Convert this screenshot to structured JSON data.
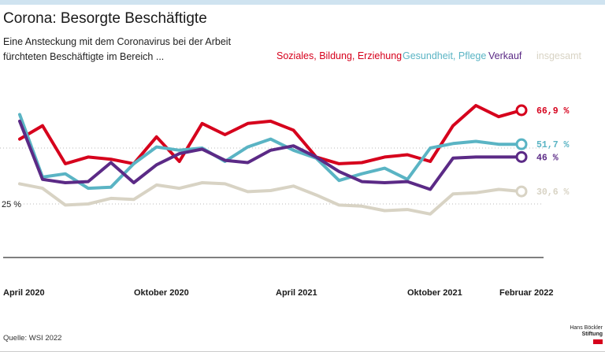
{
  "header": {
    "title": "Corona: Besorgte Beschäftigte",
    "subtitle": "Eine Ansteckung mit dem Coronavirus bei der Arbeit fürchteten Beschäftigte im Bereich ..."
  },
  "footer": {
    "source": "Quelle: WSI 2022",
    "logo_line1": "Hans Böckler",
    "logo_line2": "Stiftung"
  },
  "colors": {
    "soziales": "#d6001c",
    "gesundheit": "#5ab4c4",
    "verkauf": "#5b2a86",
    "insgesamt": "#d8d3c4",
    "axis": "#333333",
    "grid": "#bbbbbb"
  },
  "chart_data": {
    "type": "line",
    "title": "Corona: Besorgte Beschäftigte",
    "ylabel": "",
    "xlabel": "",
    "ylim": [
      10,
      85
    ],
    "grid": "dotted reference lines at 25 % and 50 %",
    "y_ticks": [
      {
        "value": 25,
        "label": "25 %"
      }
    ],
    "x_ticks": [
      {
        "index": 0,
        "label": "April 2020"
      },
      {
        "index": 6,
        "label": "Oktober 2020"
      },
      {
        "index": 12,
        "label": "April 2021"
      },
      {
        "index": 18,
        "label": "Oktober 2021"
      },
      {
        "index": 22,
        "label": "Februar 2022"
      }
    ],
    "n_points": 23,
    "series": [
      {
        "key": "soziales",
        "name": "Soziales, Bildung, Erziehung",
        "end_label": "66,9 %",
        "values": [
          54,
          60,
          43,
          46,
          45,
          43,
          55,
          44,
          61,
          56,
          61,
          62,
          58,
          46,
          43,
          43.5,
          46,
          47,
          44,
          60,
          69,
          64,
          66.9
        ]
      },
      {
        "key": "gesundheit",
        "name": "Gesundheit, Pflege",
        "end_label": "51,7 %",
        "values": [
          65,
          37,
          38.5,
          32,
          32.5,
          43,
          50.5,
          49,
          50,
          44,
          50.5,
          54,
          49,
          45.5,
          35.5,
          38.5,
          41,
          36,
          50,
          52,
          53,
          51.7,
          51.7
        ]
      },
      {
        "key": "verkauf",
        "name": "Verkauf",
        "end_label": "46 %",
        "values": [
          62,
          36,
          34.5,
          35,
          43.5,
          34.5,
          42.5,
          47.5,
          49.5,
          44.5,
          43.5,
          49,
          51,
          46,
          39.5,
          35,
          34.5,
          35,
          31.5,
          45.5,
          46,
          46,
          46
        ]
      },
      {
        "key": "insgesamt",
        "name": "insgesamt",
        "end_label": "30,6 %",
        "values": [
          34,
          32,
          24.5,
          25,
          27.5,
          27,
          33.5,
          32,
          34.5,
          34,
          30.5,
          31,
          33,
          29,
          24.5,
          24,
          22,
          22.5,
          20.5,
          29.5,
          30,
          31.5,
          30.6
        ]
      }
    ]
  }
}
